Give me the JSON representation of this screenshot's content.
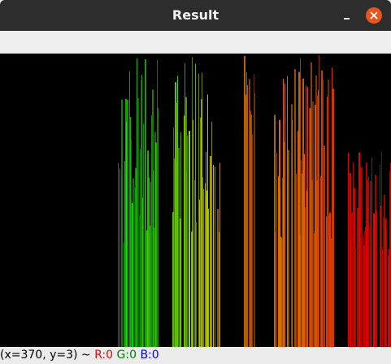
{
  "window": {
    "title": "Result"
  },
  "image": {
    "description_icon": "histogram-image"
  },
  "status": {
    "coords": "(x=370, y=3) ~ ",
    "r_label": "R:0",
    "g_label": "G:0",
    "b_label": "B:0",
    "r_color": "#ff0000",
    "g_color": "#008000",
    "b_color": "#0000ff"
  },
  "colors": {
    "titlebar": "#2d2d2d",
    "close_button": "#e9541e",
    "canvas_background": "#000000"
  }
}
